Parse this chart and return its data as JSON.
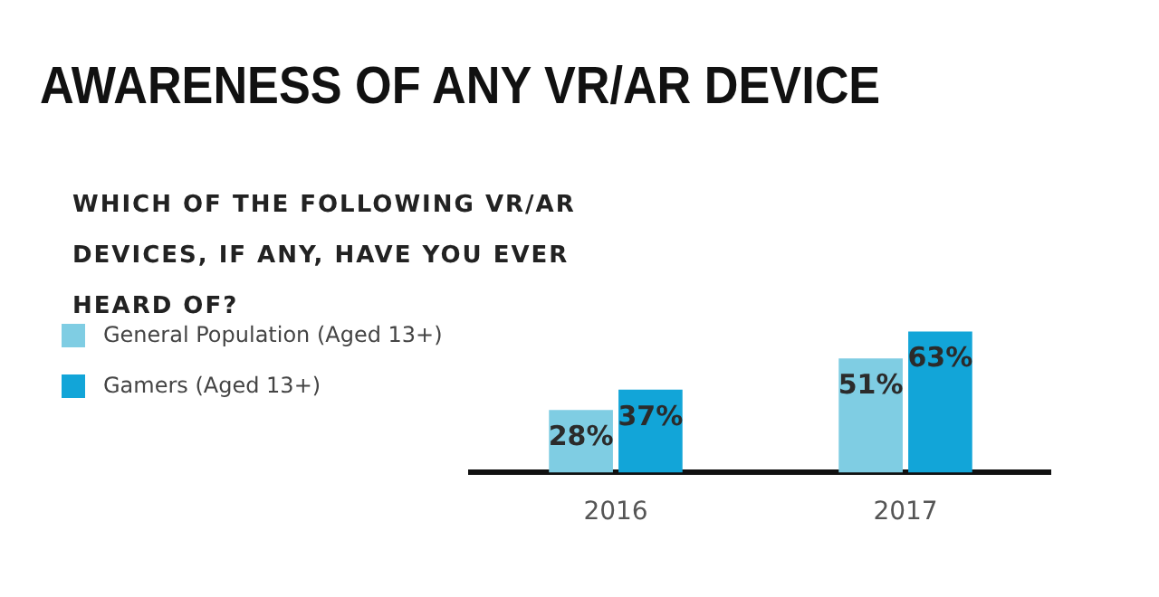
{
  "chart_data": {
    "type": "bar",
    "title": "AWARENESS OF ANY VR/AR DEVICE",
    "subtitle": "WHICH OF THE FOLLOWING VR/AR DEVICES, IF ANY, HAVE YOU EVER HEARD OF?",
    "categories": [
      "2016",
      "2017"
    ],
    "series": [
      {
        "name": "General Population (Aged 13+)",
        "color": "#7fcde3",
        "values": [
          28,
          51
        ],
        "value_labels": [
          "28%",
          "51%"
        ]
      },
      {
        "name": "Gamers (Aged 13+)",
        "color": "#12a5d8",
        "values": [
          37,
          63
        ],
        "value_labels": [
          "37%",
          "63%"
        ]
      }
    ],
    "legend": "left",
    "grid": false
  }
}
